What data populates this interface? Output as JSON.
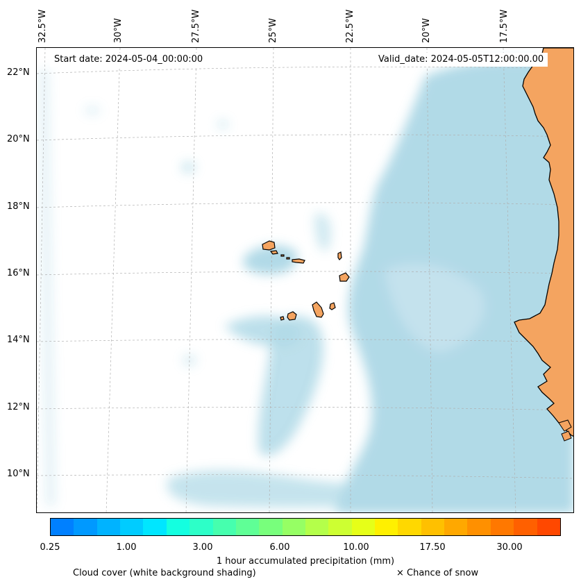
{
  "map": {
    "start_date": "Start date: 2024-05-04_00:00:00",
    "valid_date": "Valid_date: 2024-05-05T12:00:00.00",
    "lon_labels": [
      "32.5°W",
      "30°W",
      "27.5°W",
      "25°W",
      "22.5°W",
      "20°W",
      "17.5°W"
    ],
    "lat_labels": [
      "22°N",
      "20°N",
      "18°N",
      "16°N",
      "14°N",
      "12°N",
      "10°N"
    ],
    "colors": {
      "land": "#f4a460",
      "cloud": "#add8e6",
      "ocean": "#ffffff"
    }
  },
  "colorbar": {
    "tick_labels": [
      "0.25",
      "1.00",
      "3.00",
      "6.00",
      "10.00",
      "17.50",
      "30.00"
    ],
    "label": "1 hour accumulated precipitation (mm)",
    "colors": [
      "#0080ff",
      "#0099ff",
      "#00b3ff",
      "#00ccff",
      "#00e6ff",
      "#14ffe0",
      "#2dffc8",
      "#46ffae",
      "#5fff96",
      "#78ff7c",
      "#96ff64",
      "#b4ff4a",
      "#cdff32",
      "#e6ff18",
      "#fff000",
      "#ffd800",
      "#ffc000",
      "#ffa800",
      "#ff9000",
      "#ff7800",
      "#ff6000",
      "#ff4800"
    ]
  },
  "captions": {
    "cloud": "Cloud cover (white background shading)",
    "snow": "× Chance of snow"
  }
}
